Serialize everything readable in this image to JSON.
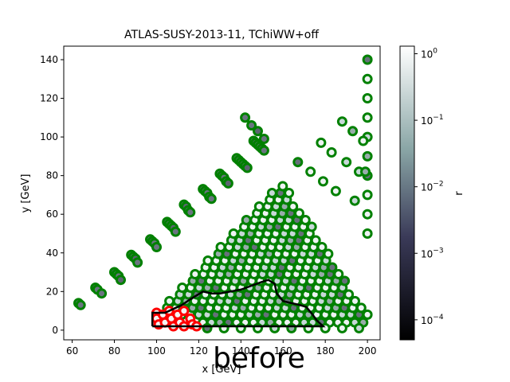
{
  "chart_data": {
    "type": "scatter",
    "title": "ATLAS-SUSY-2013-11, TChiWW+off",
    "xlabel": "x [GeV]",
    "ylabel": "y [GeV]",
    "xlim": [
      56,
      206
    ],
    "ylim": [
      -5,
      147
    ],
    "xticks": [
      60,
      80,
      100,
      120,
      140,
      160,
      180,
      200
    ],
    "yticks": [
      0,
      20,
      40,
      60,
      80,
      100,
      120,
      140
    ],
    "grid": false,
    "colorbar": {
      "label": "r",
      "scale": "log",
      "range": [
        5e-05,
        1.3
      ],
      "ticks": [
        {
          "value": 1,
          "label": "10^0"
        },
        {
          "value": 0.1,
          "label": "10^-1"
        },
        {
          "value": 0.01,
          "label": "10^-2"
        },
        {
          "value": 0.001,
          "label": "10^-3"
        },
        {
          "value": 0.0001,
          "label": "10^-4"
        }
      ]
    },
    "point_status_colors": {
      "allowed": "#008000",
      "excluded": "#ff0000"
    },
    "diagonal_points": [
      [
        63,
        14
      ],
      [
        64,
        13
      ],
      [
        71,
        22
      ],
      [
        72,
        21
      ],
      [
        74,
        19
      ],
      [
        80,
        30
      ],
      [
        81,
        29
      ],
      [
        82,
        28
      ],
      [
        83,
        26
      ],
      [
        88,
        39
      ],
      [
        89,
        38
      ],
      [
        90,
        37
      ],
      [
        91,
        35
      ],
      [
        97,
        47
      ],
      [
        98,
        46
      ],
      [
        99,
        45
      ],
      [
        100,
        43
      ],
      [
        105,
        56
      ],
      [
        106,
        55
      ],
      [
        107,
        54
      ],
      [
        108,
        53
      ],
      [
        109,
        51
      ],
      [
        113,
        65
      ],
      [
        114,
        64
      ],
      [
        115,
        62
      ],
      [
        116,
        61
      ],
      [
        122,
        73
      ],
      [
        123,
        72
      ],
      [
        124,
        71
      ],
      [
        125,
        69
      ],
      [
        126,
        68
      ],
      [
        130,
        81
      ],
      [
        131,
        80
      ],
      [
        132,
        79
      ],
      [
        133,
        77
      ],
      [
        134,
        76
      ],
      [
        138,
        89
      ],
      [
        139,
        88
      ],
      [
        140,
        87
      ],
      [
        141,
        86
      ],
      [
        142,
        85
      ],
      [
        143,
        84
      ],
      [
        142,
        110
      ],
      [
        145,
        106
      ],
      [
        148,
        103
      ],
      [
        151,
        99
      ],
      [
        146,
        98
      ],
      [
        147,
        97
      ],
      [
        148,
        96
      ],
      [
        149,
        95
      ],
      [
        150,
        94
      ],
      [
        151,
        93
      ]
    ],
    "right_edge_points": [
      [
        200,
        140
      ],
      [
        200,
        130
      ],
      [
        200,
        120
      ],
      [
        200,
        110
      ],
      [
        200,
        100
      ],
      [
        200,
        90
      ],
      [
        200,
        80
      ],
      [
        200,
        70
      ],
      [
        200,
        60
      ],
      [
        200,
        50
      ],
      [
        188,
        108
      ],
      [
        193,
        103
      ],
      [
        198,
        98
      ],
      [
        178,
        97
      ],
      [
        183,
        92
      ],
      [
        190,
        87
      ],
      [
        196,
        82
      ],
      [
        167,
        87
      ],
      [
        173,
        82
      ],
      [
        179,
        77
      ],
      [
        185,
        72
      ],
      [
        194,
        67
      ],
      [
        199,
        82
      ]
    ],
    "dense_region": {
      "upper_apex": [
        160,
        77
      ],
      "lower_left": [
        100,
        8
      ],
      "lower_right": [
        200,
        8
      ],
      "row_spacing": 3.5,
      "x_spacing": 4
    },
    "excluded_points": [
      [
        100,
        9
      ],
      [
        100,
        6
      ],
      [
        101,
        3
      ],
      [
        103,
        8
      ],
      [
        104,
        4
      ],
      [
        106,
        10
      ],
      [
        107,
        6
      ],
      [
        108,
        2
      ],
      [
        110,
        8
      ],
      [
        111,
        4
      ],
      [
        113,
        10
      ],
      [
        113,
        2
      ],
      [
        116,
        6
      ],
      [
        117,
        3
      ],
      [
        119,
        2
      ]
    ],
    "exclusion_contour": [
      [
        98,
        2
      ],
      [
        98,
        9
      ],
      [
        104,
        9
      ],
      [
        108,
        11
      ],
      [
        112,
        13
      ],
      [
        116,
        16
      ],
      [
        119,
        18
      ],
      [
        122,
        20
      ],
      [
        126,
        19
      ],
      [
        130,
        19
      ],
      [
        135,
        20
      ],
      [
        140,
        21
      ],
      [
        145,
        23
      ],
      [
        150,
        25
      ],
      [
        153,
        26
      ],
      [
        156,
        24
      ],
      [
        157,
        19
      ],
      [
        160,
        15
      ],
      [
        164,
        14
      ],
      [
        168,
        13
      ],
      [
        171,
        12
      ],
      [
        174,
        8
      ],
      [
        176,
        5
      ],
      [
        179,
        2
      ],
      [
        98,
        2
      ]
    ],
    "watermark": "before"
  }
}
